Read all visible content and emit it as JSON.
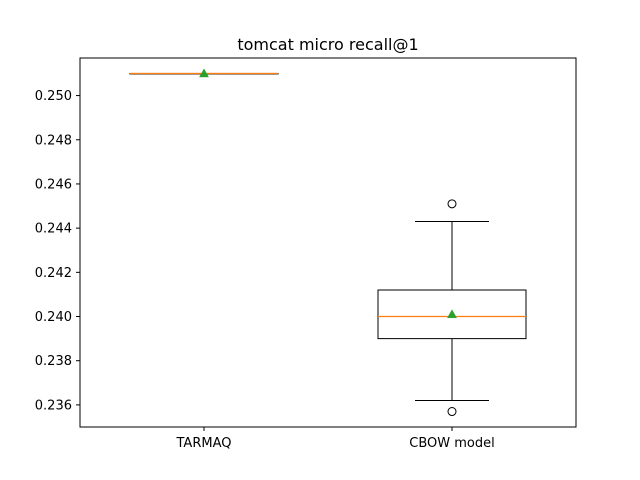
{
  "chart_data": {
    "type": "box",
    "title": "tomcat micro recall@1",
    "xlabel": "",
    "ylabel": "",
    "ylim": [
      0.235,
      0.2517
    ],
    "yticks": [
      0.236,
      0.238,
      0.24,
      0.242,
      0.244,
      0.246,
      0.248,
      0.25
    ],
    "ytick_labels": [
      "0.236",
      "0.238",
      "0.240",
      "0.242",
      "0.244",
      "0.246",
      "0.248",
      "0.250"
    ],
    "grid": false,
    "colors": {
      "box": "#000000",
      "median": "#ff7f0e",
      "mean": "#2ca02c",
      "flier": "#000000"
    },
    "series": [
      {
        "category": "TARMAQ",
        "whisker_low": 0.251,
        "q1": 0.251,
        "median": 0.251,
        "q3": 0.251,
        "whisker_high": 0.251,
        "mean": 0.251,
        "fliers": []
      },
      {
        "category": "CBOW model",
        "whisker_low": 0.2362,
        "q1": 0.239,
        "median": 0.24,
        "q3": 0.2412,
        "whisker_high": 0.2443,
        "mean": 0.2401,
        "fliers": [
          0.2451,
          0.2357
        ]
      }
    ]
  }
}
